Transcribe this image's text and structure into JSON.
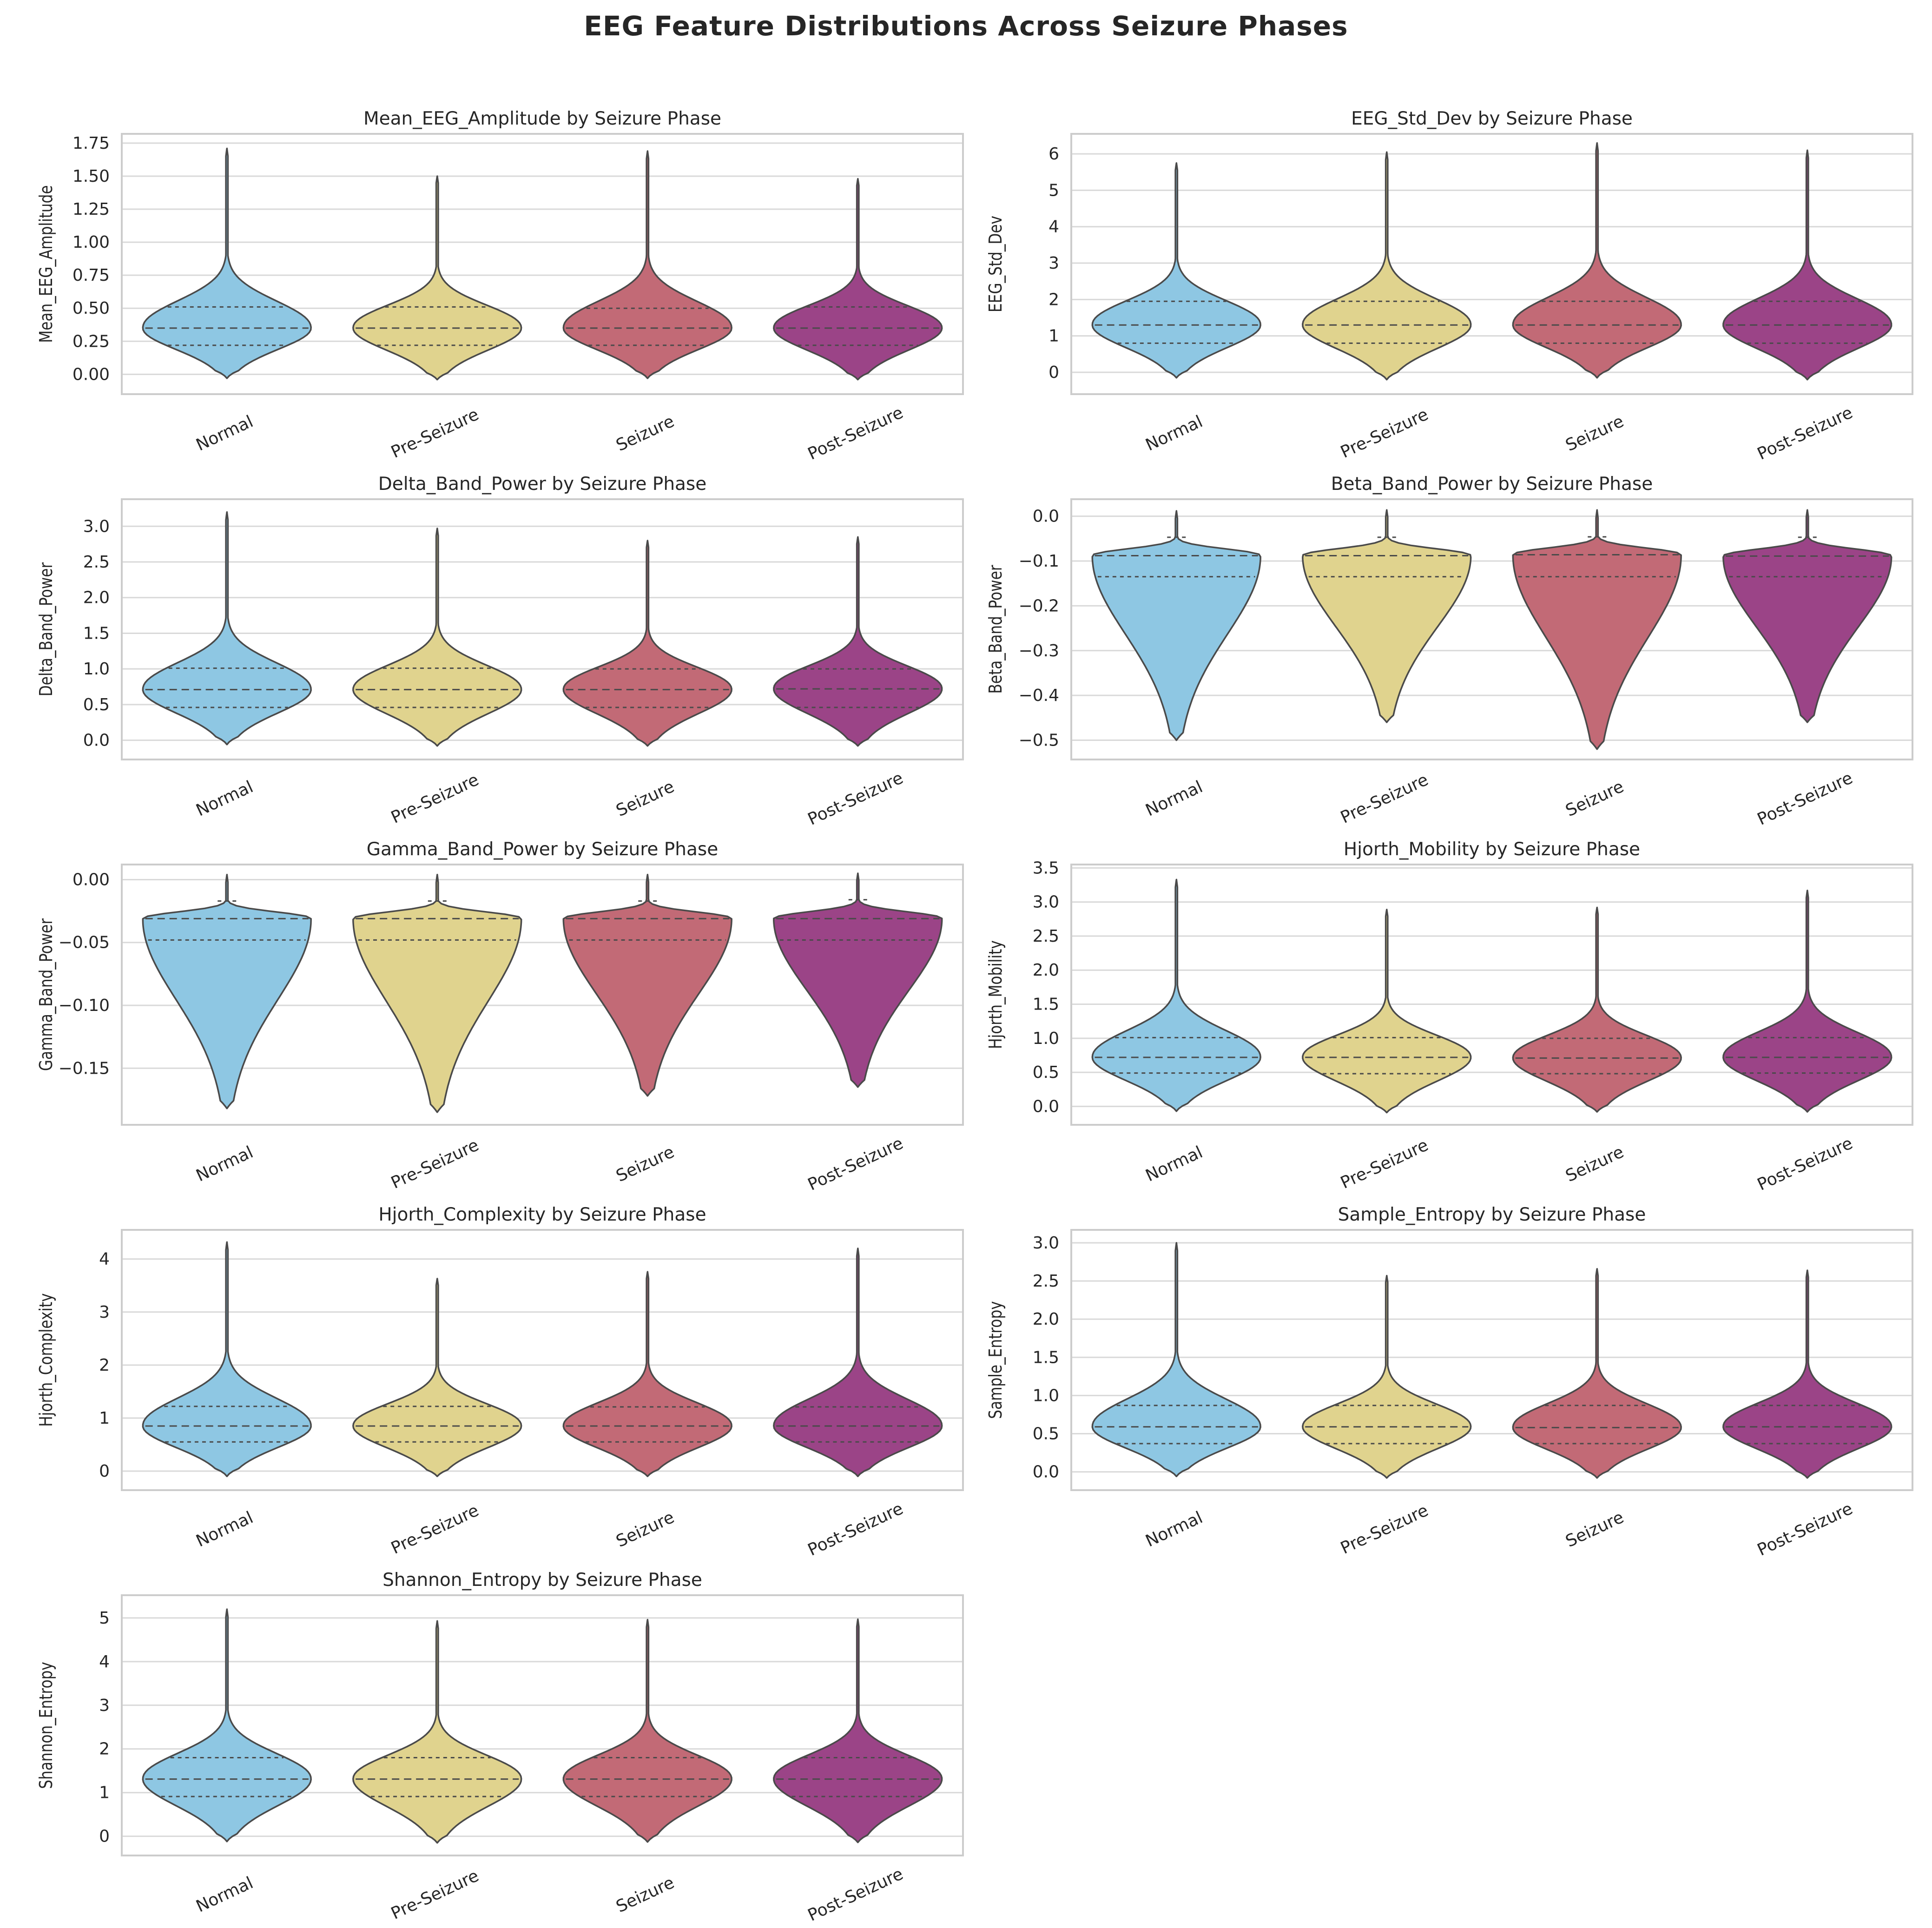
{
  "figure_title": "EEG Feature Distributions Across Seizure Phases",
  "colors": {
    "Normal": "#8ec7e3",
    "Pre-Seizure": "#e0d38e",
    "Seizure": "#c26a76",
    "Post-Seizure": "#9b4487",
    "outline": "#4a4a4a",
    "grid": "#d9d9d9",
    "axes_edge": "#cccccc",
    "text": "#262626"
  },
  "chart_data": [
    {
      "type": "violin",
      "title": "Mean_EEG_Amplitude by Seizure Phase",
      "ylabel": "Mean_EEG_Amplitude",
      "xlabel": "",
      "categories": [
        "Normal",
        "Pre-Seizure",
        "Seizure",
        "Post-Seizure"
      ],
      "ylim": [
        -0.15,
        1.82
      ],
      "yticks": [
        0.0,
        0.25,
        0.5,
        0.75,
        1.0,
        1.25,
        1.5,
        1.75
      ],
      "ytick_labels": [
        "0.00",
        "0.25",
        "0.50",
        "0.75",
        "1.00",
        "1.25",
        "1.50",
        "1.75"
      ],
      "series": [
        {
          "name": "Normal",
          "min": -0.03,
          "max": 1.71,
          "q1": 0.22,
          "median": 0.35,
          "q3": 0.51
        },
        {
          "name": "Pre-Seizure",
          "min": -0.04,
          "max": 1.5,
          "q1": 0.22,
          "median": 0.35,
          "q3": 0.51
        },
        {
          "name": "Seizure",
          "min": -0.03,
          "max": 1.69,
          "q1": 0.22,
          "median": 0.35,
          "q3": 0.5
        },
        {
          "name": "Post-Seizure",
          "min": -0.04,
          "max": 1.48,
          "q1": 0.22,
          "median": 0.35,
          "q3": 0.51
        }
      ]
    },
    {
      "type": "violin",
      "title": "EEG_Std_Dev by Seizure Phase",
      "ylabel": "EEG_Std_Dev",
      "xlabel": "",
      "categories": [
        "Normal",
        "Pre-Seizure",
        "Seizure",
        "Post-Seizure"
      ],
      "ylim": [
        -0.6,
        6.55
      ],
      "yticks": [
        0,
        1,
        2,
        3,
        4,
        5,
        6
      ],
      "ytick_labels": [
        "0",
        "1",
        "2",
        "3",
        "4",
        "5",
        "6"
      ],
      "series": [
        {
          "name": "Normal",
          "min": -0.15,
          "max": 5.75,
          "q1": 0.8,
          "median": 1.3,
          "q3": 1.95
        },
        {
          "name": "Pre-Seizure",
          "min": -0.2,
          "max": 6.05,
          "q1": 0.8,
          "median": 1.3,
          "q3": 1.95
        },
        {
          "name": "Seizure",
          "min": -0.15,
          "max": 6.3,
          "q1": 0.8,
          "median": 1.3,
          "q3": 1.95
        },
        {
          "name": "Post-Seizure",
          "min": -0.2,
          "max": 6.1,
          "q1": 0.8,
          "median": 1.3,
          "q3": 1.95
        }
      ]
    },
    {
      "type": "violin",
      "title": "Delta_Band_Power by Seizure Phase",
      "ylabel": "Delta_Band_Power",
      "xlabel": "",
      "categories": [
        "Normal",
        "Pre-Seizure",
        "Seizure",
        "Post-Seizure"
      ],
      "ylim": [
        -0.27,
        3.38
      ],
      "yticks": [
        0.0,
        0.5,
        1.0,
        1.5,
        2.0,
        2.5,
        3.0
      ],
      "ytick_labels": [
        "0.0",
        "0.5",
        "1.0",
        "1.5",
        "2.0",
        "2.5",
        "3.0"
      ],
      "series": [
        {
          "name": "Normal",
          "min": -0.06,
          "max": 3.2,
          "q1": 0.46,
          "median": 0.71,
          "q3": 1.01
        },
        {
          "name": "Pre-Seizure",
          "min": -0.08,
          "max": 2.97,
          "q1": 0.46,
          "median": 0.71,
          "q3": 1.01
        },
        {
          "name": "Seizure",
          "min": -0.08,
          "max": 2.8,
          "q1": 0.46,
          "median": 0.71,
          "q3": 1.0
        },
        {
          "name": "Post-Seizure",
          "min": -0.08,
          "max": 2.85,
          "q1": 0.46,
          "median": 0.72,
          "q3": 1.0
        }
      ]
    },
    {
      "type": "violin",
      "title": "Beta_Band_Power by Seizure Phase",
      "ylabel": "Beta_Band_Power",
      "xlabel": "",
      "categories": [
        "Normal",
        "Pre-Seizure",
        "Seizure",
        "Post-Seizure"
      ],
      "ylim": [
        -0.543,
        0.038
      ],
      "yticks": [
        0.0,
        -0.1,
        -0.2,
        -0.3,
        -0.4,
        -0.5
      ],
      "ytick_labels": [
        "0.0",
        "−0.1",
        "−0.2",
        "−0.3",
        "−0.4",
        "−0.5"
      ],
      "series": [
        {
          "name": "Normal",
          "min": -0.5,
          "max": 0.012,
          "q1": -0.135,
          "median": -0.088,
          "q3": -0.047
        },
        {
          "name": "Pre-Seizure",
          "min": -0.46,
          "max": 0.014,
          "q1": -0.135,
          "median": -0.088,
          "q3": -0.047
        },
        {
          "name": "Seizure",
          "min": -0.52,
          "max": 0.014,
          "q1": -0.135,
          "median": -0.086,
          "q3": -0.046
        },
        {
          "name": "Post-Seizure",
          "min": -0.46,
          "max": 0.014,
          "q1": -0.135,
          "median": -0.089,
          "q3": -0.047
        }
      ]
    },
    {
      "type": "violin",
      "title": "Gamma_Band_Power by Seizure Phase",
      "ylabel": "Gamma_Band_Power",
      "xlabel": "",
      "categories": [
        "Normal",
        "Pre-Seizure",
        "Seizure",
        "Post-Seizure"
      ],
      "ylim": [
        -0.195,
        0.012
      ],
      "yticks": [
        0.0,
        -0.05,
        -0.1,
        -0.15
      ],
      "ytick_labels": [
        "0.00",
        "−0.05",
        "−0.10",
        "−0.15"
      ],
      "series": [
        {
          "name": "Normal",
          "min": -0.182,
          "max": 0.004,
          "q1": -0.048,
          "median": -0.031,
          "q3": -0.017
        },
        {
          "name": "Pre-Seizure",
          "min": -0.185,
          "max": 0.004,
          "q1": -0.048,
          "median": -0.031,
          "q3": -0.017
        },
        {
          "name": "Seizure",
          "min": -0.172,
          "max": 0.004,
          "q1": -0.048,
          "median": -0.031,
          "q3": -0.017
        },
        {
          "name": "Post-Seizure",
          "min": -0.165,
          "max": 0.005,
          "q1": -0.048,
          "median": -0.031,
          "q3": -0.016
        }
      ]
    },
    {
      "type": "violin",
      "title": "Hjorth_Mobility by Seizure Phase",
      "ylabel": "Hjorth_Mobility",
      "xlabel": "",
      "categories": [
        "Normal",
        "Pre-Seizure",
        "Seizure",
        "Post-Seizure"
      ],
      "ylim": [
        -0.27,
        3.55
      ],
      "yticks": [
        0.0,
        0.5,
        1.0,
        1.5,
        2.0,
        2.5,
        3.0,
        3.5
      ],
      "ytick_labels": [
        "0.0",
        "0.5",
        "1.0",
        "1.5",
        "2.0",
        "2.5",
        "3.0",
        "3.5"
      ],
      "series": [
        {
          "name": "Normal",
          "min": -0.07,
          "max": 3.33,
          "q1": 0.49,
          "median": 0.72,
          "q3": 1.01
        },
        {
          "name": "Pre-Seizure",
          "min": -0.09,
          "max": 2.89,
          "q1": 0.48,
          "median": 0.72,
          "q3": 1.01
        },
        {
          "name": "Seizure",
          "min": -0.08,
          "max": 2.92,
          "q1": 0.48,
          "median": 0.71,
          "q3": 1.0
        },
        {
          "name": "Post-Seizure",
          "min": -0.08,
          "max": 3.17,
          "q1": 0.49,
          "median": 0.72,
          "q3": 1.01
        }
      ]
    },
    {
      "type": "violin",
      "title": "Hjorth_Complexity by Seizure Phase",
      "ylabel": "Hjorth_Complexity",
      "xlabel": "",
      "categories": [
        "Normal",
        "Pre-Seizure",
        "Seizure",
        "Post-Seizure"
      ],
      "ylim": [
        -0.36,
        4.55
      ],
      "yticks": [
        0,
        1,
        2,
        3,
        4
      ],
      "ytick_labels": [
        "0",
        "1",
        "2",
        "3",
        "4"
      ],
      "series": [
        {
          "name": "Normal",
          "min": -0.1,
          "max": 4.32,
          "q1": 0.55,
          "median": 0.85,
          "q3": 1.22
        },
        {
          "name": "Pre-Seizure",
          "min": -0.1,
          "max": 3.63,
          "q1": 0.55,
          "median": 0.85,
          "q3": 1.22
        },
        {
          "name": "Seizure",
          "min": -0.1,
          "max": 3.76,
          "q1": 0.55,
          "median": 0.85,
          "q3": 1.21
        },
        {
          "name": "Post-Seizure",
          "min": -0.1,
          "max": 4.2,
          "q1": 0.55,
          "median": 0.85,
          "q3": 1.21
        }
      ]
    },
    {
      "type": "violin",
      "title": "Sample_Entropy by Seizure Phase",
      "ylabel": "Sample_Entropy",
      "xlabel": "",
      "categories": [
        "Normal",
        "Pre-Seizure",
        "Seizure",
        "Post-Seizure"
      ],
      "ylim": [
        -0.24,
        3.17
      ],
      "yticks": [
        0.0,
        0.5,
        1.0,
        1.5,
        2.0,
        2.5,
        3.0
      ],
      "ytick_labels": [
        "0.0",
        "0.5",
        "1.0",
        "1.5",
        "2.0",
        "2.5",
        "3.0"
      ],
      "series": [
        {
          "name": "Normal",
          "min": -0.06,
          "max": 3.0,
          "q1": 0.37,
          "median": 0.59,
          "q3": 0.87
        },
        {
          "name": "Pre-Seizure",
          "min": -0.08,
          "max": 2.57,
          "q1": 0.37,
          "median": 0.59,
          "q3": 0.87
        },
        {
          "name": "Seizure",
          "min": -0.08,
          "max": 2.66,
          "q1": 0.37,
          "median": 0.58,
          "q3": 0.87
        },
        {
          "name": "Post-Seizure",
          "min": -0.08,
          "max": 2.64,
          "q1": 0.37,
          "median": 0.59,
          "q3": 0.87
        }
      ]
    },
    {
      "type": "violin",
      "title": "Shannon_Entropy by Seizure Phase",
      "ylabel": "Shannon_Entropy",
      "xlabel": "",
      "categories": [
        "Normal",
        "Pre-Seizure",
        "Seizure",
        "Post-Seizure"
      ],
      "ylim": [
        -0.44,
        5.52
      ],
      "yticks": [
        0,
        1,
        2,
        3,
        4,
        5
      ],
      "ytick_labels": [
        "0",
        "1",
        "2",
        "3",
        "4",
        "5"
      ],
      "series": [
        {
          "name": "Normal",
          "min": -0.12,
          "max": 5.2,
          "q1": 0.91,
          "median": 1.31,
          "q3": 1.8
        },
        {
          "name": "Pre-Seizure",
          "min": -0.15,
          "max": 4.93,
          "q1": 0.91,
          "median": 1.31,
          "q3": 1.8
        },
        {
          "name": "Seizure",
          "min": -0.13,
          "max": 4.96,
          "q1": 0.91,
          "median": 1.31,
          "q3": 1.8
        },
        {
          "name": "Post-Seizure",
          "min": -0.14,
          "max": 4.97,
          "q1": 0.91,
          "median": 1.31,
          "q3": 1.8
        }
      ]
    }
  ]
}
